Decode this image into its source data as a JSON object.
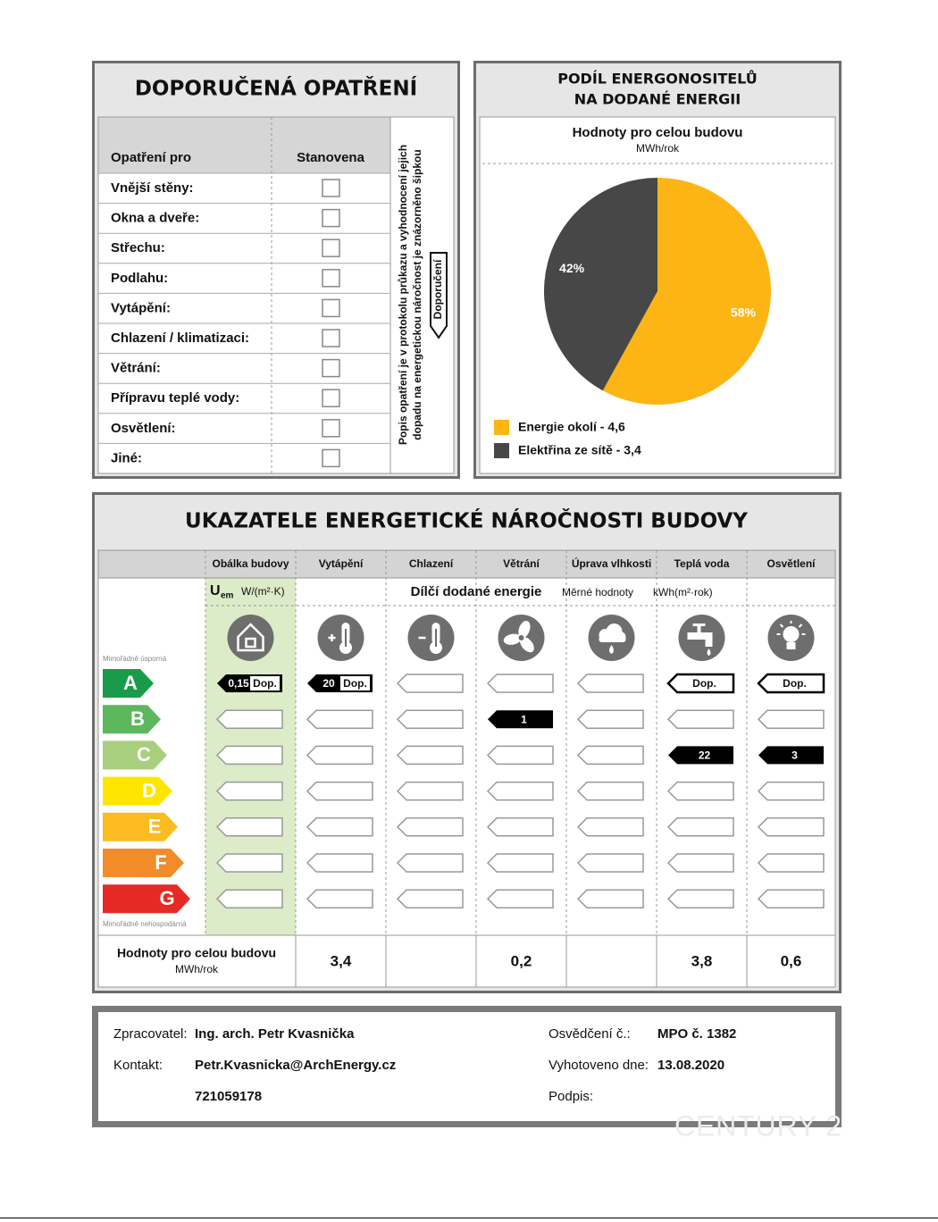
{
  "recommended": {
    "title": "DOPORUČENÁ OPATŘENÍ",
    "headers": [
      "Opatření pro",
      "Stanovena"
    ],
    "rows": [
      "Vnější stěny:",
      "Okna a dveře:",
      "Střechu:",
      "Podlahu:",
      "Vytápění:",
      "Chlazení / klimatizaci:",
      "Větrání:",
      "Přípravu teplé vody:",
      "Osvětlení:",
      "Jiné:"
    ],
    "note": [
      "Popis opatření je v protokolu průkazu a vyhodnocení jejich",
      "dopadu na energetickou náročnost je znázorněno šipkou"
    ],
    "arrow_label": "Doporučení"
  },
  "share": {
    "title": [
      "PODÍL ENERGONOSITELŮ",
      "NA DODANÉ ENERGII"
    ]
  },
  "chart_data": {
    "type": "pie",
    "title": "Hodnoty pro celou budovu",
    "subtitle": "MWh/rok",
    "categories": [
      "Energie okolí - 4,6",
      "Elektřina ze sítě - 3,4"
    ],
    "values": [
      58,
      42
    ],
    "value_labels": [
      "58%",
      "42%"
    ],
    "colors": [
      "#fdb515",
      "#474747"
    ]
  },
  "indicators": {
    "title": "UKAZATELE ENERGETICKÉ NÁROČNOSTI BUDOVY",
    "columns": [
      "Obálka budovy",
      "Vytápění",
      "Chlazení",
      "Větrání",
      "Úprava vlhkosti",
      "Teplá voda",
      "Osvětlení"
    ],
    "u_symbol": "U",
    "u_sub": "em",
    "u_unit": "W/(m²·K)",
    "subheading": "Dílčí dodané energie",
    "specific": "Měrné hodnoty",
    "specific_unit": "kWh(m²·rok)",
    "best": "Mimořádně úsporná",
    "worst": "Mimořádně nehospodárná",
    "classes": [
      "A",
      "B",
      "C",
      "D",
      "E",
      "F",
      "G"
    ],
    "class_colors": [
      "#1a9b4b",
      "#5cb85c",
      "#a8cf7e",
      "#ffe600",
      "#fbbb21",
      "#f28c28",
      "#e52a25"
    ],
    "markers": [
      [
        {
          "class": "A",
          "value": "0,15",
          "label": "Dop."
        }
      ],
      [
        {
          "class": "A",
          "value": "20",
          "label": "Dop."
        }
      ],
      [],
      [
        {
          "class": "B",
          "value": "1"
        }
      ],
      [],
      [
        {
          "class": "A",
          "label": "Dop."
        },
        {
          "class": "C",
          "value": "22"
        }
      ],
      [
        {
          "class": "A",
          "label": "Dop."
        },
        {
          "class": "C",
          "value": "3"
        }
      ]
    ],
    "totals_label": "Hodnoty pro celou budovu",
    "totals_unit": "MWh/rok",
    "totals": [
      "3,4",
      null,
      "0,2",
      null,
      "3,8",
      "0,6"
    ]
  },
  "footer": {
    "left": [
      [
        "Zpracovatel:",
        "Ing. arch. Petr Kvasnička"
      ],
      [
        "Kontakt:",
        "Petr.Kvasnicka@ArchEnergy.cz"
      ],
      [
        null,
        "721059178"
      ]
    ],
    "right": [
      [
        "Osvědčení č.:",
        "MPO č. 1382"
      ],
      [
        "Vyhotoveno dne:",
        "13.08.2020"
      ],
      [
        "Podpis:",
        null
      ]
    ],
    "watermark": "CENTURY 2"
  }
}
